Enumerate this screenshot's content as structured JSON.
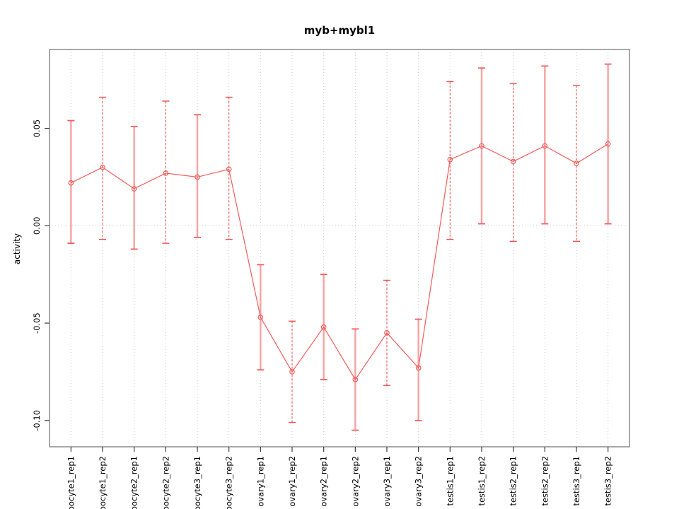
{
  "chart_data": {
    "type": "line",
    "title": "myb+mybl1",
    "ylabel": "activity",
    "xlabel": "",
    "legend_position": "none",
    "categories": [
      "oocyte1_rep1",
      "oocyte1_rep2",
      "oocyte2_rep1",
      "oocyte2_rep2",
      "oocyte3_rep1",
      "oocyte3_rep2",
      "ovary1_rep1",
      "ovary1_rep2",
      "ovary2_rep1",
      "ovary2_rep2",
      "ovary3_rep1",
      "ovary3_rep2",
      "testis1_rep1",
      "testis1_rep2",
      "testis2_rep1",
      "testis2_rep2",
      "testis3_rep1",
      "testis3_rep2"
    ],
    "series": [
      {
        "name": "activity",
        "marker": "open-circle",
        "values": [
          0.022,
          0.03,
          0.019,
          0.027,
          0.025,
          0.029,
          -0.047,
          -0.075,
          -0.052,
          -0.079,
          -0.055,
          -0.073,
          0.034,
          0.041,
          0.033,
          0.041,
          0.032,
          0.042
        ],
        "err_high": [
          0.054,
          0.066,
          0.051,
          0.064,
          0.057,
          0.066,
          -0.02,
          -0.049,
          -0.025,
          -0.053,
          -0.028,
          -0.048,
          0.074,
          0.081,
          0.073,
          0.082,
          0.072,
          0.083
        ],
        "err_low": [
          -0.009,
          -0.007,
          -0.012,
          -0.009,
          -0.006,
          -0.007,
          -0.074,
          -0.101,
          -0.079,
          -0.105,
          -0.082,
          -0.1,
          -0.007,
          0.001,
          -0.008,
          0.001,
          -0.008,
          0.001
        ],
        "bar_styles": [
          "solid",
          "dashed",
          "solid",
          "dashed",
          "solid",
          "dashed",
          "solid",
          "dashed",
          "solid",
          "solid",
          "dashed",
          "solid",
          "dashed",
          "solid",
          "dashed",
          "solid",
          "dashed",
          "solid"
        ]
      }
    ],
    "yticks": [
      {
        "value": 0.05,
        "label": "0.05"
      },
      {
        "value": 0.0,
        "label": "0.00"
      },
      {
        "value": -0.05,
        "label": "-0.05"
      },
      {
        "value": -0.1,
        "label": "-0.10"
      }
    ],
    "ylim": [
      -0.1135,
      0.0905
    ],
    "grid": {
      "vertical_per_category": true,
      "horizontal_at_zero": true,
      "style": "dotted"
    },
    "colors": {
      "point": "#f25c5c",
      "line": "#f25c5c",
      "bar_solid": "#f7a2a2",
      "bar_solid_cap": "#f06060",
      "bar_dashed": "#ee4f4f",
      "grid": "#cccccc",
      "frame": "#7a7a7a",
      "tick": "#3a3a3a",
      "text": "#000000",
      "background": "#ffffff"
    }
  }
}
